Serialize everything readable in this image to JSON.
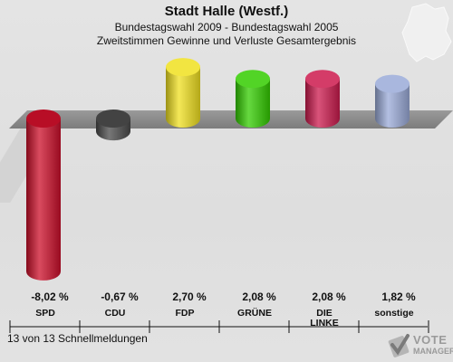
{
  "header": {
    "title": "Stadt Halle (Westf.)",
    "subtitle": "Bundestagswahl 2009 - Bundestagswahl 2005",
    "subtitle2": "Zweitstimmen Gewinne und Verluste Gesamtergebnis"
  },
  "footer": {
    "text": "13 von 13 Schnellmeldungen"
  },
  "logo": {
    "line1": "VOTE",
    "line2": "MANAGER"
  },
  "chart_data": {
    "type": "bar",
    "title": "Stadt Halle (Westf.)",
    "categories": [
      "SPD",
      "CDU",
      "FDP",
      "GRÜNE",
      "DIE LINKE",
      "sonstige"
    ],
    "category_lines": [
      [
        "SPD"
      ],
      [
        "CDU"
      ],
      [
        "FDP"
      ],
      [
        "GRÜNE"
      ],
      [
        "DIE",
        "LINKE"
      ],
      [
        "sonstige"
      ]
    ],
    "values": [
      -8.02,
      -0.67,
      2.7,
      2.08,
      2.08,
      1.82
    ],
    "value_labels": [
      "-8,02 %",
      "-0,67 %",
      "2,70 %",
      "2,08 %",
      "2,08 %",
      "1,82 %"
    ],
    "colors": [
      "#cc0f2a",
      "#4a4a4a",
      "#f0e020",
      "#33cc00",
      "#cc1a4d",
      "#9aaad8"
    ],
    "ylim": [
      -8.5,
      3.2
    ],
    "grid": false,
    "legend": "none"
  }
}
